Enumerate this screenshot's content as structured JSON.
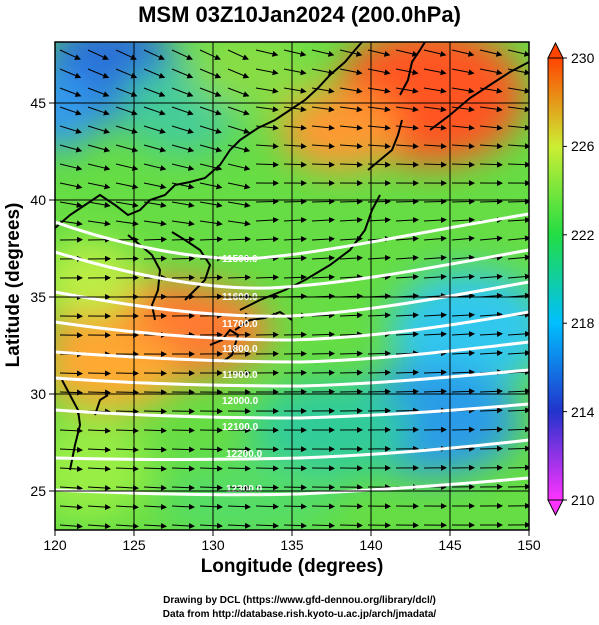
{
  "title": "MSM 03Z10Jan2024 (200.0hPa)",
  "xlabel": "Longitude (degrees)",
  "ylabel": "Latitude  (degrees)",
  "credits": {
    "line1": "Drawing by DCL (https://www.gfd-dennou.org/library/dcl/)",
    "line2": "Data from http://database.rish.kyoto-u.ac.jp/arch/jmadata/"
  },
  "map": {
    "lon_range": [
      120,
      150
    ],
    "lat_range": [
      22.4,
      47.6
    ],
    "x_ticks": [
      "120",
      "125",
      "130",
      "135",
      "140",
      "145",
      "150"
    ],
    "y_ticks": [
      "25",
      "30",
      "35",
      "40",
      "45"
    ],
    "gridlines": true
  },
  "colorbar": {
    "min": 210,
    "max": 230,
    "labels": [
      "230",
      "226",
      "222",
      "218",
      "214",
      "210"
    ],
    "colors": [
      "#ff33ff",
      "#2233cc",
      "#00bfff",
      "#22dd44",
      "#ccee33",
      "#ff4400"
    ]
  },
  "contours": [
    {
      "label": "11500.0"
    },
    {
      "label": "11600.0"
    },
    {
      "label": "11700.0"
    },
    {
      "label": "11800.0"
    },
    {
      "label": "11900.0"
    },
    {
      "label": "12000.0"
    },
    {
      "label": "12100.0"
    },
    {
      "label": "12200.0"
    },
    {
      "label": "12300.0"
    }
  ]
}
